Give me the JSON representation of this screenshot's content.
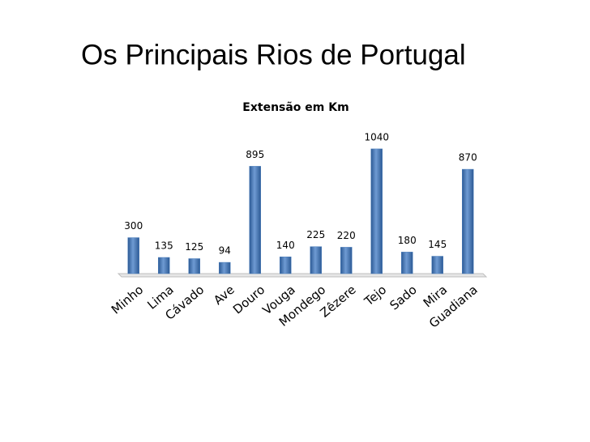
{
  "chart_data": {
    "type": "bar",
    "title": "Os Principais Rios de Portugal",
    "subtitle": "Extensão em Km",
    "categories": [
      "Minho",
      "Lima",
      "Cávado",
      "Ave",
      "Douro",
      "Vouga",
      "Mondego",
      "Zêzere",
      "Tejo",
      "Sado",
      "Mira",
      "Guadiana"
    ],
    "values": [
      300,
      135,
      125,
      94,
      895,
      140,
      225,
      220,
      1040,
      180,
      145,
      870
    ],
    "color": "#4f81bd",
    "ylim": [
      0,
      1100
    ]
  }
}
